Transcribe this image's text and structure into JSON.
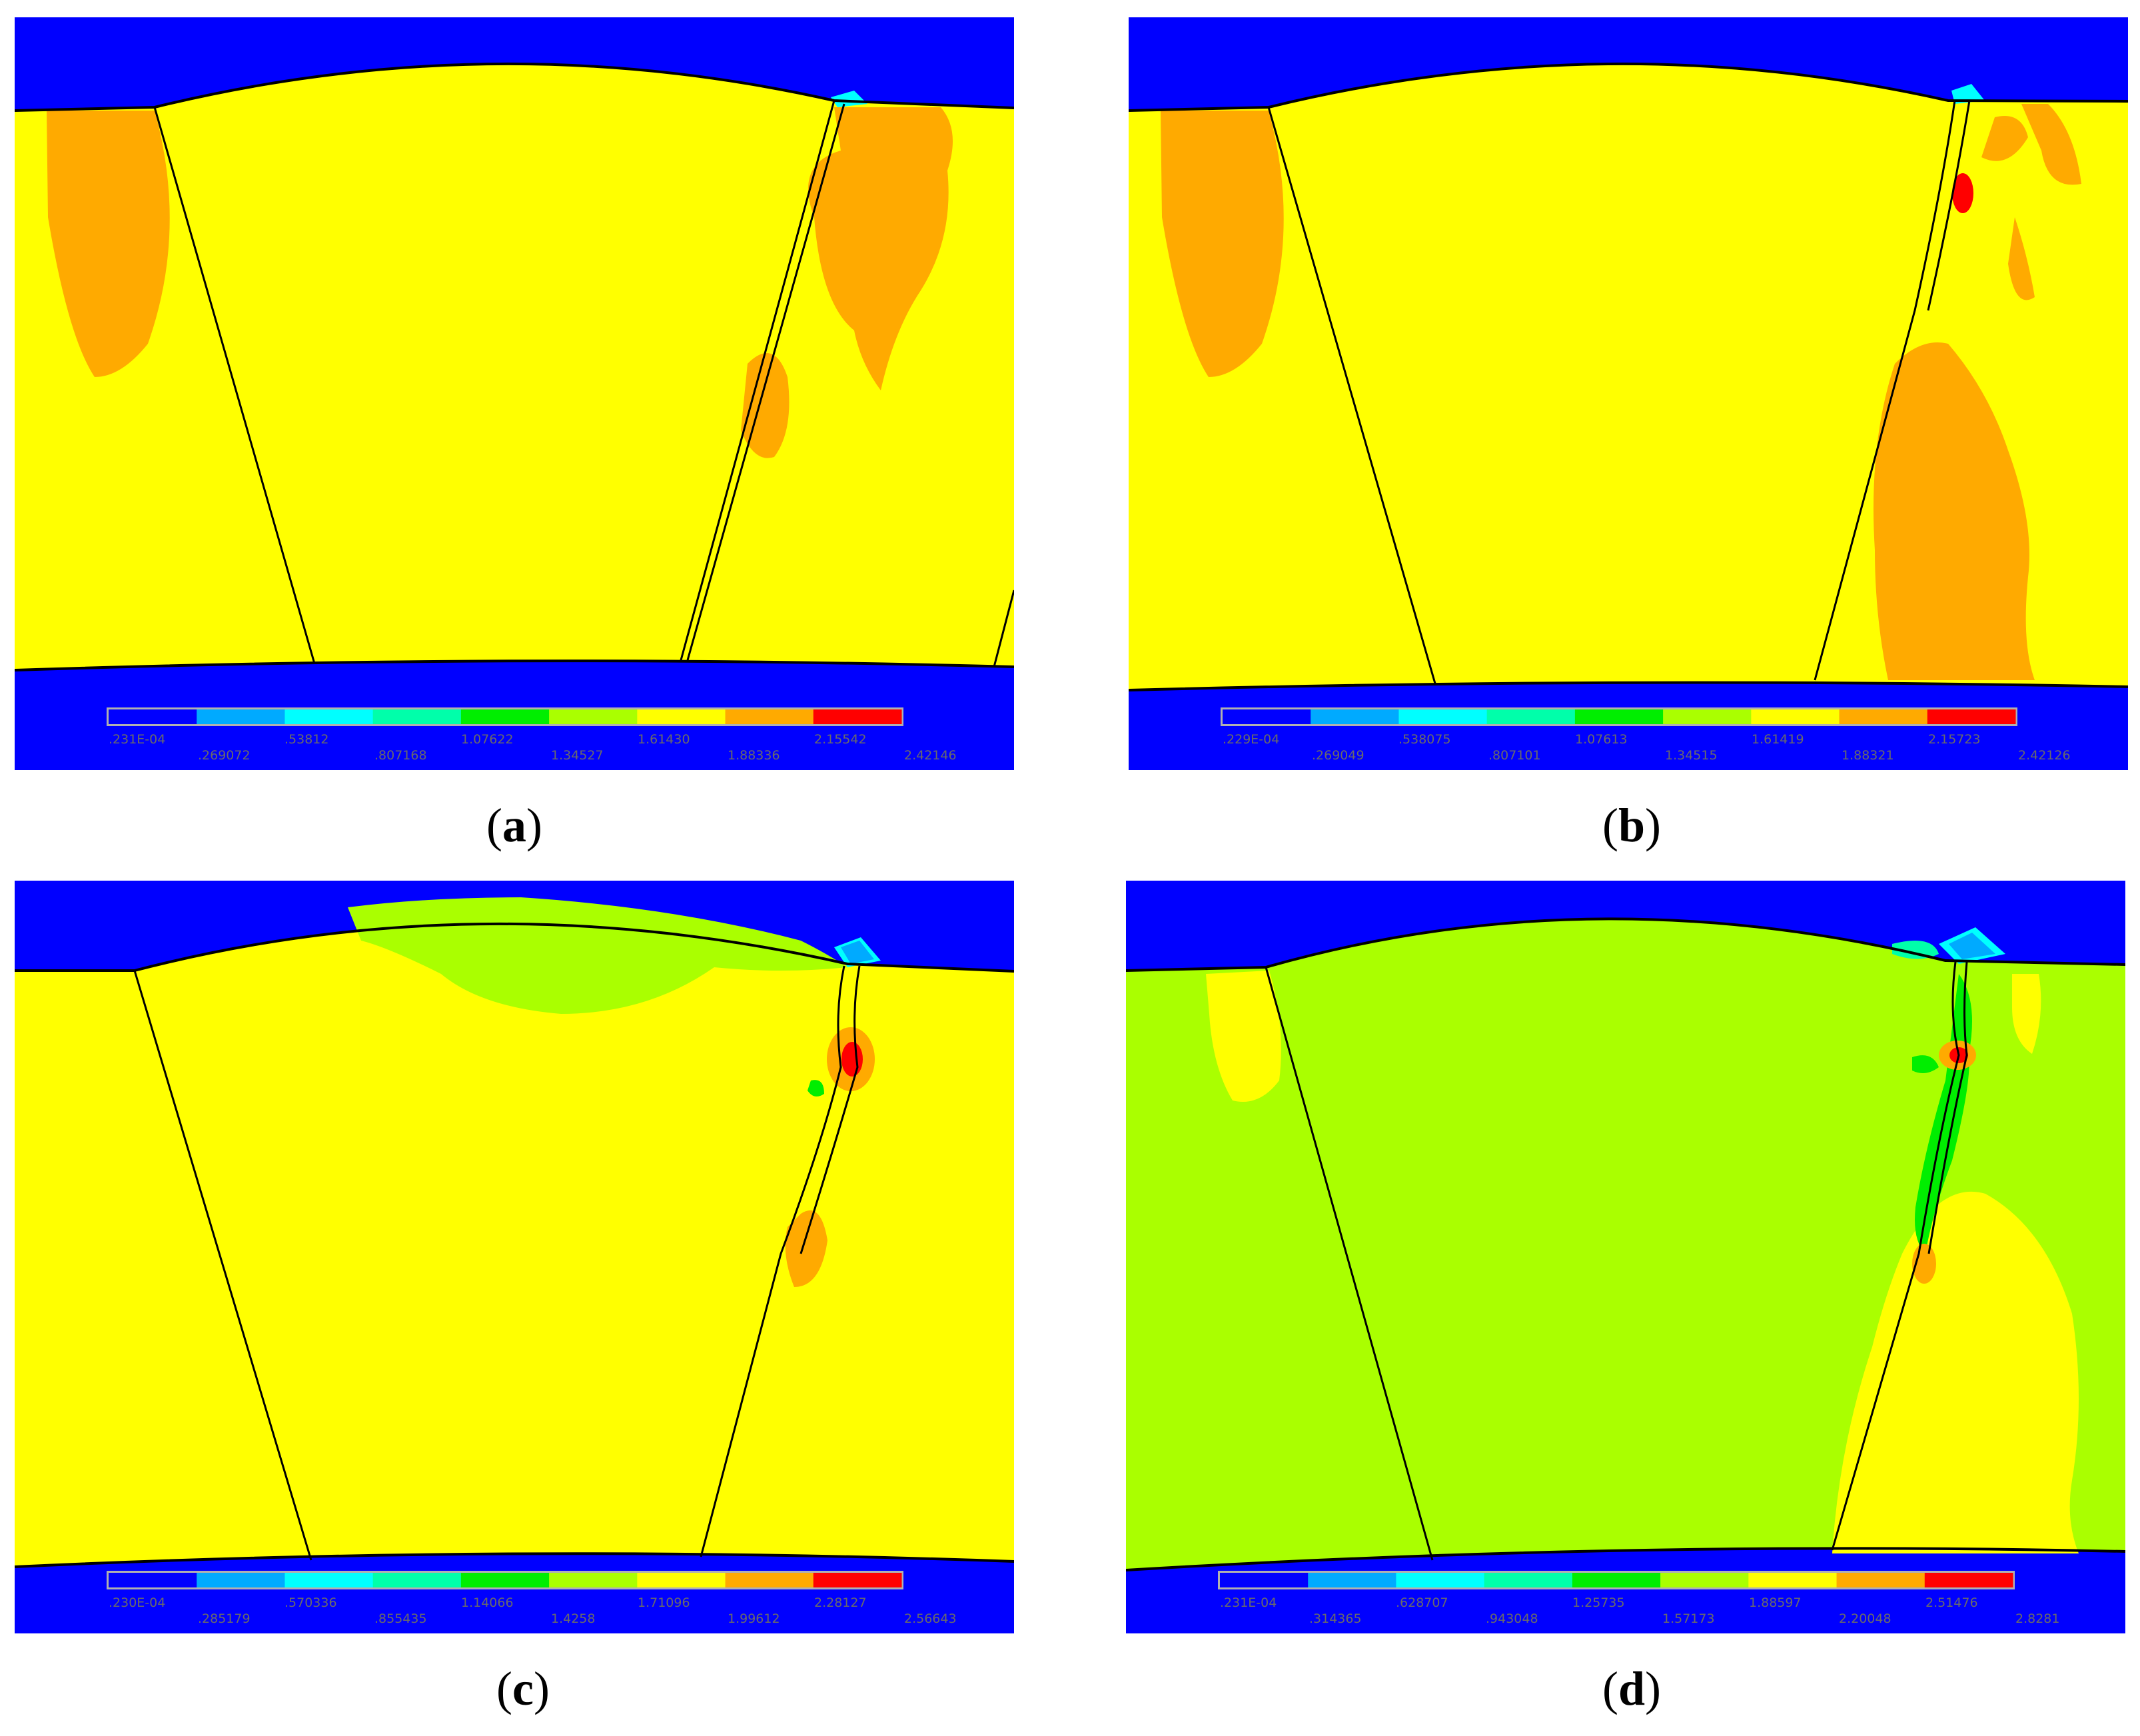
{
  "panels": [
    {
      "id": "a",
      "caption_letter": "a",
      "legend_ticks_top": [
        ".231E-04",
        ".53812",
        "1.07622",
        "1.61430",
        "2.15542"
      ],
      "legend_ticks_bottom": [
        ".269072",
        ".807168",
        "1.34527",
        "1.88336",
        "2.42146"
      ]
    },
    {
      "id": "b",
      "caption_letter": "b",
      "legend_ticks_top": [
        ".229E-04",
        ".538075",
        "1.07613",
        "1.61419",
        "2.15723"
      ],
      "legend_ticks_bottom": [
        ".269049",
        ".807101",
        "1.34515",
        "1.88321",
        "2.42126"
      ]
    },
    {
      "id": "c",
      "caption_letter": "c",
      "legend_ticks_top": [
        ".230E-04",
        ".570336",
        "1.14066",
        "1.71096",
        "2.28127"
      ],
      "legend_ticks_bottom": [
        ".285179",
        ".855435",
        "1.4258",
        "1.99612",
        "2.56643"
      ]
    },
    {
      "id": "d",
      "caption_letter": "d",
      "legend_ticks_top": [
        ".231E-04",
        ".628707",
        "1.25735",
        "1.88597",
        "2.51476"
      ],
      "legend_ticks_bottom": [
        ".314365",
        ".943048",
        "1.57173",
        "2.20048",
        "2.8281"
      ]
    }
  ],
  "colors": {
    "blue": "#0000ff",
    "yellow": "#ffff00",
    "orange": "#ffaa00",
    "red": "#ff0000",
    "green": "#00ee00",
    "lime": "#aaff00",
    "cyan": "#00ffff",
    "sky": "#00aaff",
    "teal": "#00ffaa"
  },
  "legend_colors": [
    "#0000ff",
    "#00aaff",
    "#00ffff",
    "#00ffaa",
    "#00ee00",
    "#aaff00",
    "#ffff00",
    "#ffaa00",
    "#ff0000"
  ]
}
